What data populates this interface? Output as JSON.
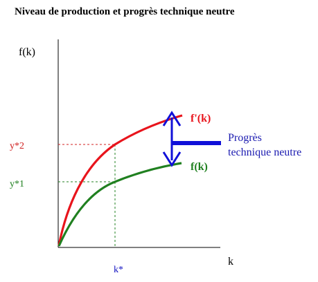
{
  "title": "Niveau de production et progrès technique neutre",
  "axes": {
    "y_label": "f(k)",
    "x_label": "k"
  },
  "ticks": {
    "y_high": "y*2",
    "y_low": "y*1",
    "x_star": "k*"
  },
  "curves": {
    "upper_label": "f'(k)",
    "lower_label": "f(k)"
  },
  "annotation": {
    "line1": "Progrès",
    "line2": "technique neutre"
  },
  "colors": {
    "upper_curve": "#e8141c",
    "lower_curve": "#208020",
    "arrow": "#1010d8",
    "y_tick_high": "#d02020",
    "y_tick_low": "#208020",
    "x_tick": "#1010c0",
    "annotation": "#1a1ab0"
  }
}
